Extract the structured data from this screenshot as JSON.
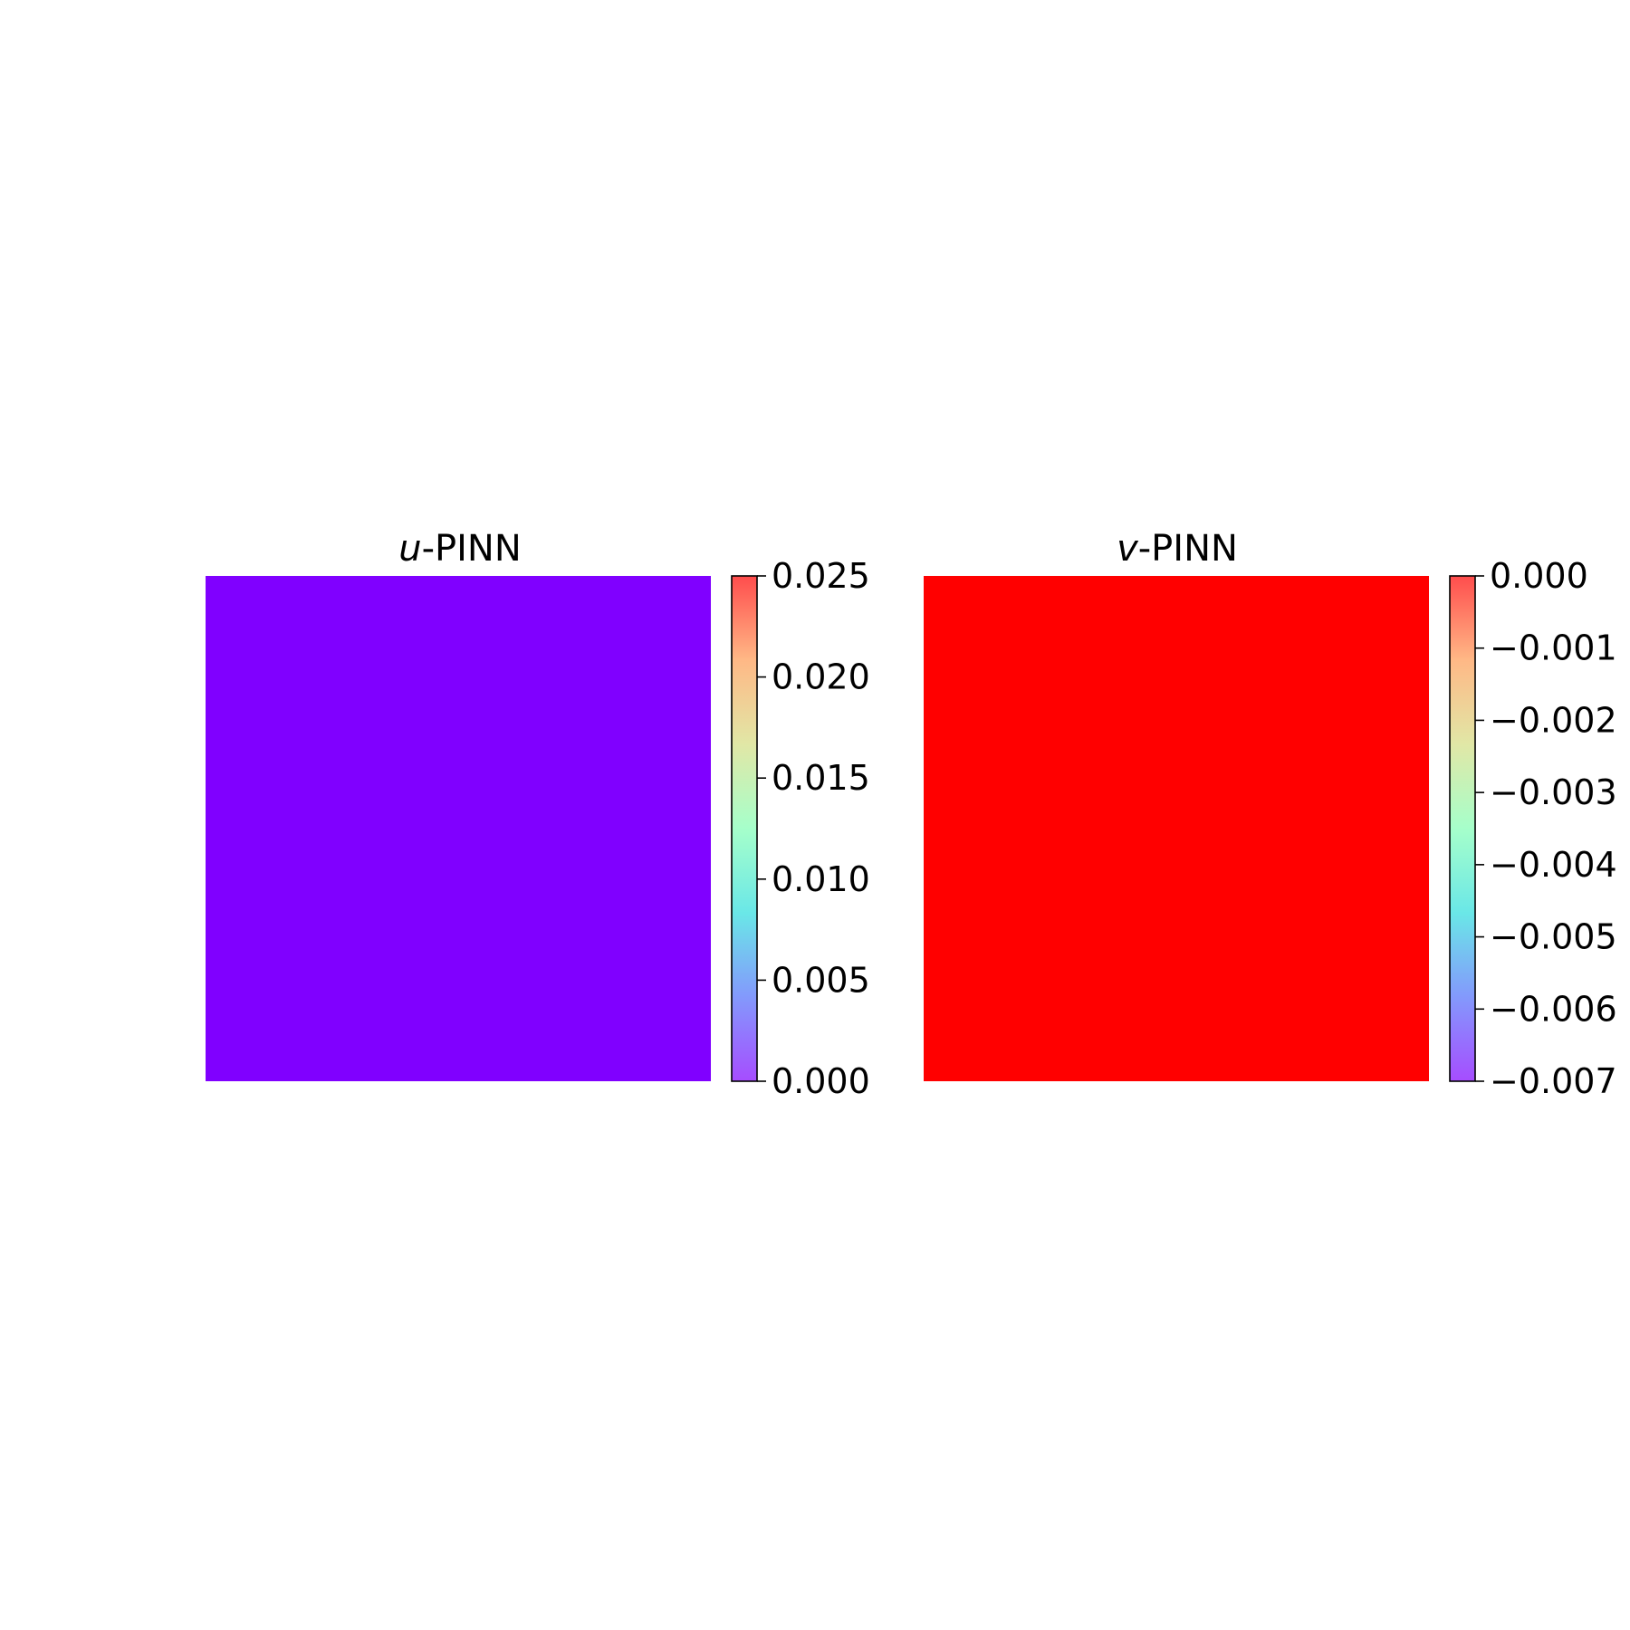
{
  "chart_data": [
    {
      "type": "heatmap",
      "title_var": "u",
      "title_suffix": "-PINN",
      "field_color": "#8000ff",
      "colormap": "rainbow",
      "colormap_stops": [
        "#8000ff",
        "#4e6dfb",
        "#2adddd",
        "#80ffb4",
        "#d4dd80",
        "#ff9a52",
        "#ff0000"
      ],
      "colorbar_alpha": 0.7,
      "value_range": [
        0.0,
        0.025
      ],
      "colorbar_ticks": [
        0.0,
        0.005,
        0.01,
        0.015,
        0.02,
        0.025
      ],
      "colorbar_tick_labels": [
        "0.000",
        "0.005",
        "0.010",
        "0.015",
        "0.020",
        "0.025"
      ],
      "field_value": 0.0
    },
    {
      "type": "heatmap",
      "title_var": "v",
      "title_suffix": "-PINN",
      "field_color": "#ff0000",
      "colormap": "rainbow",
      "colormap_stops": [
        "#8000ff",
        "#4e6dfb",
        "#2adddd",
        "#80ffb4",
        "#d4dd80",
        "#ff9a52",
        "#ff0000"
      ],
      "colorbar_alpha": 0.7,
      "value_range": [
        -0.007,
        0.0
      ],
      "colorbar_ticks": [
        -0.007,
        -0.006,
        -0.005,
        -0.004,
        -0.003,
        -0.002,
        -0.001,
        0.0
      ],
      "colorbar_tick_labels": [
        "−0.007",
        "−0.006",
        "−0.005",
        "−0.004",
        "−0.003",
        "−0.002",
        "−0.001",
        "0.000"
      ],
      "field_value": 0.0
    }
  ]
}
